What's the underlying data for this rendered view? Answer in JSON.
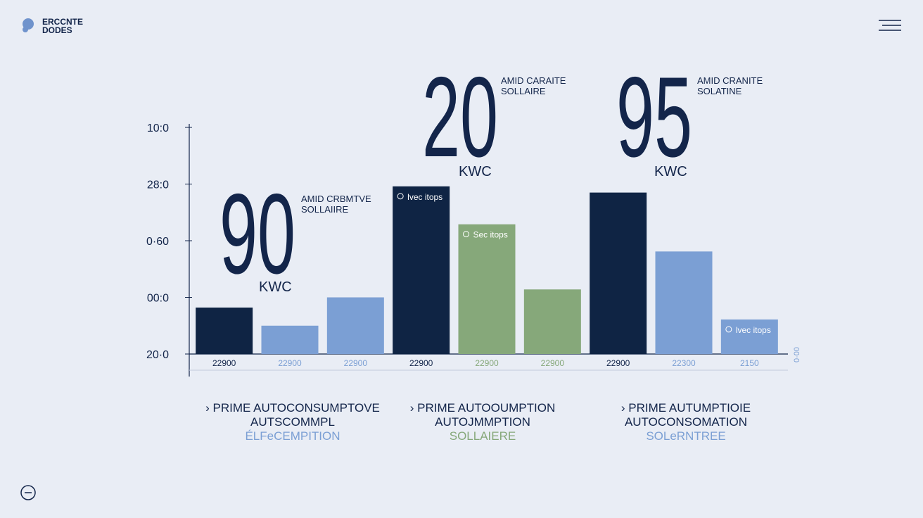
{
  "header": {
    "logo_lines": [
      "ERCCNTE",
      "DODES"
    ]
  },
  "chart_data": {
    "type": "bar",
    "categories": [
      "22900",
      "22900",
      "22900",
      "22900",
      "22900",
      "22900",
      "22900",
      "22300",
      "2150"
    ],
    "values": [
      0.82,
      0.5,
      1.0,
      2.96,
      2.29,
      1.14,
      2.85,
      1.81,
      0.61
    ],
    "colors": [
      "#0f2444",
      "#7b9fd4",
      "#7b9fd4",
      "#0f2444",
      "#86a87a",
      "#86a87a",
      "#0f2444",
      "#7b9fd4",
      "#7b9fd4"
    ],
    "bar_tags": [
      null,
      null,
      null,
      "lvec itops",
      "Sec itops",
      null,
      null,
      null,
      "lvec itops"
    ],
    "ylim": [
      0,
      4.1
    ],
    "yticks": [
      {
        "value": 0,
        "label": "20·0"
      },
      {
        "value": 1,
        "label": "00:0"
      },
      {
        "value": 2,
        "label": "0·60"
      },
      {
        "value": 3,
        "label": "28:0"
      },
      {
        "value": 4,
        "label": "10:0"
      }
    ],
    "side_label": "0·00",
    "annotations": [
      {
        "value": 90,
        "unit": "KWC",
        "caption": [
          "AMID CRBMTVE",
          "SOLLAIIRE"
        ]
      },
      {
        "value": 20,
        "unit": "KWC",
        "caption": [
          "AMID CARAITE",
          "SOLLAIRE"
        ]
      },
      {
        "value": 95,
        "unit": "KWC",
        "caption": [
          "AMID CRANITE",
          "SOLATINE"
        ]
      }
    ],
    "groups": [
      {
        "lines": [
          "› PRIME AUTOCONSUMPTOVE",
          "AUTSCOMMPL",
          "ÉLFeCEMPITION"
        ],
        "color": "#7b9fd4"
      },
      {
        "lines": [
          "› PRIME AUTOOUMPTION",
          "AUTOJMMPTION",
          "SOLLAIERE"
        ],
        "color": "#86a87a"
      },
      {
        "lines": [
          "› PRIME AUTUMPTIOIE",
          "AUTOCONSOMATION",
          "SOLeRNTREE"
        ],
        "color": "#7b9fd4"
      }
    ]
  }
}
